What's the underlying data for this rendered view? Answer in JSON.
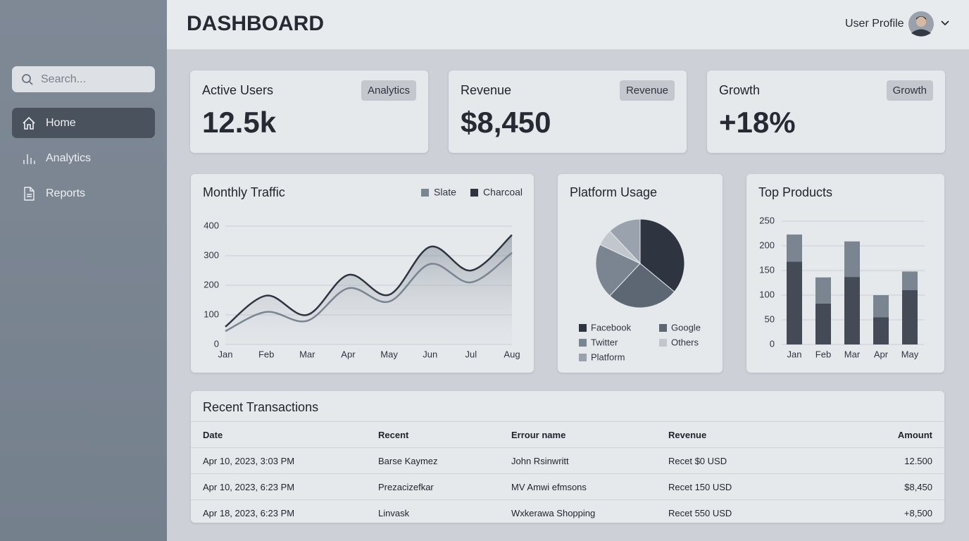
{
  "sidebar": {
    "search_placeholder": "Search...",
    "nav": [
      "Home",
      "Analytics",
      "Reports"
    ]
  },
  "header": {
    "title": "DASHBOARD",
    "user": "User Profile"
  },
  "cards": [
    {
      "label": "Active Users",
      "badge": "Analytics",
      "value": "12.5k"
    },
    {
      "label": "Revenue",
      "badge": "Revenue",
      "value": "$8,450"
    },
    {
      "label": "Growth",
      "badge": "Growth",
      "value": "+18%"
    }
  ],
  "chart_data": [
    {
      "type": "line",
      "title": "Monthly Traffic",
      "categories": [
        "Jan",
        "Feb",
        "Mar",
        "Apr",
        "May",
        "Jun",
        "Jul",
        "Aug"
      ],
      "series": [
        {
          "name": "Slate",
          "color": "#7a8591",
          "values": [
            45,
            110,
            80,
            190,
            145,
            272,
            210,
            310
          ]
        },
        {
          "name": "Charcoal",
          "color": "#2f3540",
          "area": true,
          "values": [
            60,
            165,
            100,
            235,
            168,
            330,
            250,
            370
          ]
        }
      ],
      "ylim": [
        0,
        400
      ],
      "yticks": [
        0,
        100,
        200,
        300,
        400
      ],
      "grid": true,
      "legend": "top-right"
    },
    {
      "type": "pie",
      "title": "Platform Usage",
      "categories": [
        "Facebook",
        "Google",
        "Twitter",
        "Others",
        "Platform"
      ],
      "values": [
        36,
        26,
        20,
        6,
        12
      ],
      "colors": [
        "#2f3540",
        "#5d6673",
        "#7a8591",
        "#c2c7cd",
        "#9aa3ad"
      ],
      "legend": "bottom"
    },
    {
      "type": "stacked_bar",
      "title": "Top Products",
      "categories": [
        "Jan",
        "Feb",
        "Mar",
        "Apr",
        "May"
      ],
      "series": [
        {
          "color": "#444b56",
          "values": [
            168,
            83,
            137,
            55,
            110
          ]
        },
        {
          "color": "#7a8591",
          "values": [
            55,
            53,
            72,
            45,
            38
          ]
        }
      ],
      "ylim": [
        0,
        250
      ],
      "yticks": [
        0,
        50,
        100,
        150,
        200,
        250
      ],
      "grid": true
    }
  ],
  "table": {
    "title": "Recent Transactions",
    "columns": [
      "Date",
      "Recent",
      "Errour name",
      "Revenue",
      "Amount"
    ],
    "rows": [
      [
        "Apr 10, 2023, 3:03 PM",
        "Barse Kaymez",
        "John Rsinwritt",
        "Recet $0 USD",
        "12.500"
      ],
      [
        "Apr 10, 2023, 6:23 PM",
        "Prezacizefkar",
        "MV Amwi efmsons",
        "Recet 150 USD",
        "$8,450"
      ],
      [
        "Apr 18, 2023, 6:23 PM",
        "Linvask",
        "Wxkerawa Shopping",
        "Recet 550 USD",
        "+8,500"
      ]
    ]
  }
}
